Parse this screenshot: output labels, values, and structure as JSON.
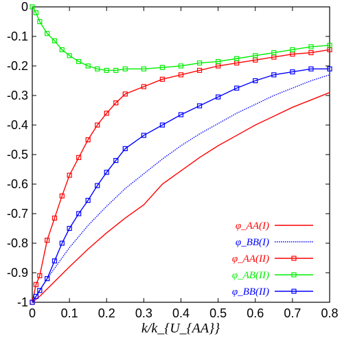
{
  "chart_data": {
    "type": "line",
    "xlabel": "k/k_{U_{AA}}",
    "ylabel": "",
    "xlim": [
      0,
      0.8
    ],
    "ylim": [
      -1,
      0
    ],
    "xticks": [
      "0",
      "0.1",
      "0.2",
      "0.3",
      "0.4",
      "0.5",
      "0.6",
      "0.7",
      "0.8"
    ],
    "yticks": [
      "0",
      "-0.1",
      "-0.2",
      "-0.3",
      "-0.4",
      "-0.5",
      "-0.6",
      "-0.7",
      "-0.8",
      "-0.9",
      "-1"
    ],
    "grid": false,
    "legend": "bottom-right",
    "series": [
      {
        "name": "φ_AA(I)",
        "color": "#ff0000",
        "style": "solid",
        "marker": "none",
        "x": [
          0,
          0.01,
          0.02,
          0.04,
          0.06,
          0.08,
          0.1,
          0.15,
          0.2,
          0.25,
          0.3,
          0.35,
          0.4,
          0.45,
          0.5,
          0.55,
          0.6,
          0.65,
          0.7,
          0.75,
          0.8
        ],
        "y": [
          -1.0,
          -0.99,
          -0.98,
          -0.955,
          -0.93,
          -0.905,
          -0.88,
          -0.82,
          -0.765,
          -0.715,
          -0.67,
          -0.6,
          -0.555,
          -0.51,
          -0.47,
          -0.435,
          -0.4,
          -0.37,
          -0.34,
          -0.315,
          -0.29
        ]
      },
      {
        "name": "φ_BB(I)",
        "color": "#0000ff",
        "style": "dotted",
        "marker": "none",
        "x": [
          0,
          0.01,
          0.02,
          0.04,
          0.06,
          0.08,
          0.1,
          0.15,
          0.2,
          0.25,
          0.3,
          0.35,
          0.4,
          0.45,
          0.5,
          0.55,
          0.6,
          0.65,
          0.7,
          0.75,
          0.8
        ],
        "y": [
          -1.0,
          -0.98,
          -0.96,
          -0.92,
          -0.885,
          -0.85,
          -0.815,
          -0.74,
          -0.675,
          -0.615,
          -0.565,
          -0.515,
          -0.47,
          -0.43,
          -0.395,
          -0.36,
          -0.33,
          -0.3,
          -0.275,
          -0.25,
          -0.23
        ]
      },
      {
        "name": "φ_AA(II)",
        "color": "#ff0000",
        "style": "solid",
        "marker": "square",
        "x": [
          0,
          0.01,
          0.02,
          0.04,
          0.06,
          0.08,
          0.1,
          0.125,
          0.15,
          0.175,
          0.2,
          0.225,
          0.25,
          0.3,
          0.35,
          0.4,
          0.45,
          0.5,
          0.55,
          0.6,
          0.65,
          0.7,
          0.75,
          0.8
        ],
        "y": [
          -1.0,
          -0.94,
          -0.91,
          -0.79,
          -0.715,
          -0.64,
          -0.57,
          -0.51,
          -0.45,
          -0.4,
          -0.36,
          -0.325,
          -0.295,
          -0.27,
          -0.245,
          -0.23,
          -0.215,
          -0.2,
          -0.19,
          -0.18,
          -0.17,
          -0.16,
          -0.155,
          -0.145
        ]
      },
      {
        "name": "φ_AB(II)",
        "color": "#00ee00",
        "style": "solid",
        "marker": "square",
        "x": [
          0,
          0.01,
          0.02,
          0.04,
          0.06,
          0.08,
          0.1,
          0.125,
          0.15,
          0.175,
          0.2,
          0.225,
          0.25,
          0.3,
          0.35,
          0.4,
          0.45,
          0.5,
          0.55,
          0.6,
          0.65,
          0.7,
          0.75,
          0.8
        ],
        "y": [
          0.0,
          -0.02,
          -0.05,
          -0.09,
          -0.115,
          -0.145,
          -0.165,
          -0.185,
          -0.2,
          -0.21,
          -0.215,
          -0.215,
          -0.21,
          -0.21,
          -0.205,
          -0.2,
          -0.19,
          -0.185,
          -0.175,
          -0.165,
          -0.155,
          -0.145,
          -0.135,
          -0.13
        ]
      },
      {
        "name": "φ_BB(II)",
        "color": "#0000ff",
        "style": "solid",
        "marker": "square",
        "x": [
          0,
          0.01,
          0.02,
          0.04,
          0.06,
          0.08,
          0.1,
          0.125,
          0.15,
          0.175,
          0.2,
          0.225,
          0.25,
          0.3,
          0.35,
          0.4,
          0.45,
          0.5,
          0.55,
          0.6,
          0.65,
          0.7,
          0.75,
          0.8
        ],
        "y": [
          -1.0,
          -0.98,
          -0.96,
          -0.92,
          -0.86,
          -0.8,
          -0.75,
          -0.7,
          -0.655,
          -0.605,
          -0.56,
          -0.52,
          -0.48,
          -0.435,
          -0.4,
          -0.365,
          -0.335,
          -0.305,
          -0.275,
          -0.25,
          -0.23,
          -0.22,
          -0.21,
          -0.21
        ]
      }
    ]
  }
}
